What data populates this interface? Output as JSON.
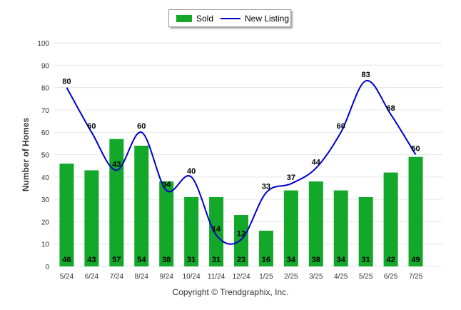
{
  "legend": {
    "sold_label": "Sold",
    "new_listing_label": "New Listing"
  },
  "footer": {
    "copyright": "Copyright © Trendgraphix, Inc."
  },
  "colors": {
    "sold": "#13a82a",
    "new_listing": "#0000cc",
    "grid": "#e6e6e6",
    "axis_text": "#333333"
  },
  "chart_data": {
    "type": "bar",
    "categories": [
      "5/24",
      "6/24",
      "7/24",
      "8/24",
      "9/24",
      "10/24",
      "11/24",
      "12/24",
      "1/25",
      "2/25",
      "3/25",
      "4/25",
      "5/25",
      "6/25",
      "7/25"
    ],
    "series": [
      {
        "name": "Sold",
        "type": "bar",
        "values": [
          46,
          43,
          57,
          54,
          38,
          31,
          31,
          23,
          16,
          34,
          38,
          34,
          31,
          42,
          49
        ]
      },
      {
        "name": "New Listing",
        "type": "line",
        "smooth": true,
        "values": [
          80,
          60,
          43,
          60,
          34,
          40,
          14,
          12,
          33,
          37,
          44,
          60,
          83,
          68,
          50
        ]
      }
    ],
    "ylabel": "Number of Homes",
    "xlabel": "",
    "ylim": [
      0,
      100
    ],
    "yticks": [
      0,
      10,
      20,
      30,
      40,
      50,
      60,
      70,
      80,
      90,
      100
    ],
    "grid": true,
    "legend_position": "top-center"
  }
}
